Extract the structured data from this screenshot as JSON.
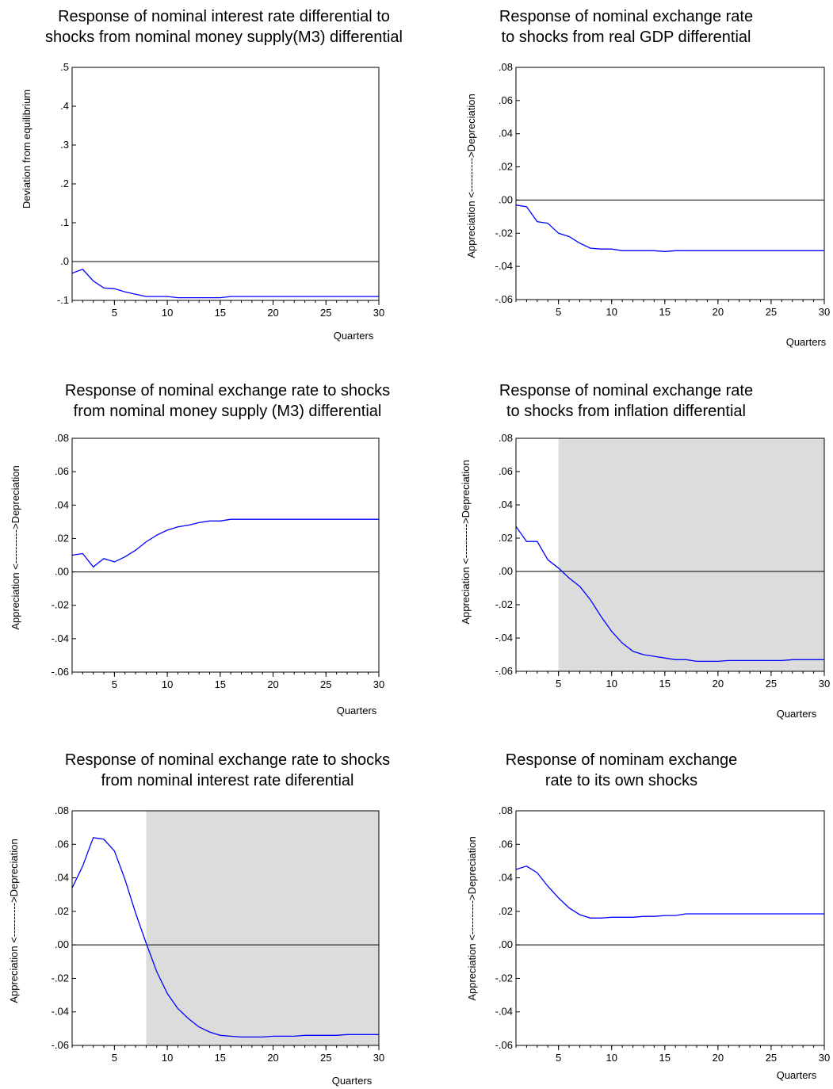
{
  "chart_data": [
    {
      "type": "line",
      "title_lines": [
        "Response of nominal interest rate differential to",
        "shocks from nominal money supply(M3) differential"
      ],
      "xlabel": "Quarters",
      "ylabel": "Deviation from equilibrium",
      "xlim": [
        1,
        30
      ],
      "x_ticks": [
        5,
        10,
        15,
        20,
        25,
        30
      ],
      "x_tick_labels": [
        "5",
        "10",
        "15",
        "20",
        "25",
        "30"
      ],
      "ylim": [
        -0.1,
        0.5
      ],
      "y_ticks": [
        -0.1,
        0.0,
        0.1,
        0.2,
        0.3,
        0.4,
        0.5
      ],
      "y_tick_labels": [
        "-.1",
        ".0",
        ".1",
        ".2",
        ".3",
        ".4",
        ".5"
      ],
      "zero_line": 0,
      "shade_from": null,
      "line_color": "#0000ff",
      "series": [
        {
          "x": [
            1,
            2,
            3,
            4,
            5,
            6,
            7,
            8,
            9,
            10,
            11,
            12,
            13,
            14,
            15,
            16,
            17,
            18,
            19,
            20,
            21,
            22,
            23,
            24,
            25,
            26,
            27,
            28,
            29,
            30
          ],
          "values": [
            -0.03,
            -0.02,
            -0.05,
            -0.068,
            -0.07,
            -0.078,
            -0.084,
            -0.09,
            -0.09,
            -0.09,
            -0.093,
            -0.093,
            -0.093,
            -0.093,
            -0.093,
            -0.09,
            -0.09,
            -0.09,
            -0.09,
            -0.09,
            -0.09,
            -0.09,
            -0.09,
            -0.09,
            -0.09,
            -0.09,
            -0.09,
            -0.09,
            -0.09,
            -0.09
          ]
        }
      ]
    },
    {
      "type": "line",
      "title_lines": [
        "Response of nominal exchange rate",
        "to shocks from real GDP differential"
      ],
      "xlabel": "Quarters",
      "ylabel": "Appreciation <---------->Depreciation",
      "xlim": [
        1,
        30
      ],
      "x_ticks": [
        5,
        10,
        15,
        20,
        25,
        30
      ],
      "x_tick_labels": [
        "5",
        "10",
        "15",
        "20",
        "25",
        "30"
      ],
      "ylim": [
        -0.06,
        0.08
      ],
      "y_ticks": [
        -0.06,
        -0.04,
        -0.02,
        0.0,
        0.02,
        0.04,
        0.06,
        0.08
      ],
      "y_tick_labels": [
        "-.06",
        "-.04",
        "-.02",
        ".00",
        ".02",
        ".04",
        ".06",
        ".08"
      ],
      "zero_line": 0,
      "shade_from": null,
      "line_color": "#0000ff",
      "series": [
        {
          "x": [
            1,
            2,
            3,
            4,
            5,
            6,
            7,
            8,
            9,
            10,
            11,
            12,
            13,
            14,
            15,
            16,
            17,
            18,
            19,
            20,
            21,
            22,
            23,
            24,
            25,
            26,
            27,
            28,
            29,
            30
          ],
          "values": [
            -0.003,
            -0.004,
            -0.013,
            -0.014,
            -0.02,
            -0.022,
            -0.026,
            -0.029,
            -0.0295,
            -0.0295,
            -0.0305,
            -0.0305,
            -0.0305,
            -0.0305,
            -0.031,
            -0.0305,
            -0.0305,
            -0.0305,
            -0.0305,
            -0.0305,
            -0.0305,
            -0.0305,
            -0.0305,
            -0.0305,
            -0.0305,
            -0.0305,
            -0.0305,
            -0.0305,
            -0.0305,
            -0.0305
          ]
        }
      ]
    },
    {
      "type": "line",
      "title_lines": [
        "Response of nominal exchange rate to shocks",
        "from nominal money supply (M3) differential"
      ],
      "xlabel": "Quarters",
      "ylabel": "Appreciation <---------->Depreciation",
      "xlim": [
        1,
        30
      ],
      "x_ticks": [
        5,
        10,
        15,
        20,
        25,
        30
      ],
      "x_tick_labels": [
        "5",
        "10",
        "15",
        "20",
        "25",
        "30"
      ],
      "ylim": [
        -0.06,
        0.08
      ],
      "y_ticks": [
        -0.06,
        -0.04,
        -0.02,
        0.0,
        0.02,
        0.04,
        0.06,
        0.08
      ],
      "y_tick_labels": [
        "-.06",
        "-.04",
        "-.02",
        ".00",
        ".02",
        ".04",
        ".06",
        ".08"
      ],
      "zero_line": 0,
      "shade_from": null,
      "line_color": "#0000ff",
      "series": [
        {
          "x": [
            1,
            2,
            3,
            4,
            5,
            6,
            7,
            8,
            9,
            10,
            11,
            12,
            13,
            14,
            15,
            16,
            17,
            18,
            19,
            20,
            21,
            22,
            23,
            24,
            25,
            26,
            27,
            28,
            29,
            30
          ],
          "values": [
            0.01,
            0.011,
            0.003,
            0.008,
            0.006,
            0.009,
            0.013,
            0.018,
            0.022,
            0.025,
            0.027,
            0.028,
            0.0295,
            0.0305,
            0.0305,
            0.0315,
            0.0315,
            0.0315,
            0.0315,
            0.0315,
            0.0315,
            0.0315,
            0.0315,
            0.0315,
            0.0315,
            0.0315,
            0.0315,
            0.0315,
            0.0315,
            0.0315
          ]
        }
      ]
    },
    {
      "type": "line",
      "title_lines": [
        "Response of nominal exchange rate",
        "to shocks from inflation differential"
      ],
      "xlabel": "Quarters",
      "ylabel": "Appreciation <---------->Depreciation",
      "xlim": [
        1,
        30
      ],
      "x_ticks": [
        5,
        10,
        15,
        20,
        25,
        30
      ],
      "x_tick_labels": [
        "5",
        "10",
        "15",
        "20",
        "25",
        "30"
      ],
      "ylim": [
        -0.06,
        0.08
      ],
      "y_ticks": [
        -0.06,
        -0.04,
        -0.02,
        0.0,
        0.02,
        0.04,
        0.06,
        0.08
      ],
      "y_tick_labels": [
        "-.06",
        "-.04",
        "-.02",
        ".00",
        ".02",
        ".04",
        ".06",
        ".08"
      ],
      "zero_line": 0,
      "shade_from": 5,
      "shade_color": "#dcdcdc",
      "line_color": "#0000ff",
      "series": [
        {
          "x": [
            1,
            2,
            3,
            4,
            5,
            6,
            7,
            8,
            9,
            10,
            11,
            12,
            13,
            14,
            15,
            16,
            17,
            18,
            19,
            20,
            21,
            22,
            23,
            24,
            25,
            26,
            27,
            28,
            29,
            30
          ],
          "values": [
            0.027,
            0.018,
            0.018,
            0.007,
            0.002,
            -0.004,
            -0.009,
            -0.017,
            -0.027,
            -0.036,
            -0.043,
            -0.048,
            -0.05,
            -0.051,
            -0.052,
            -0.053,
            -0.053,
            -0.054,
            -0.054,
            -0.054,
            -0.0535,
            -0.0535,
            -0.0535,
            -0.0535,
            -0.0535,
            -0.0535,
            -0.053,
            -0.053,
            -0.053,
            -0.053
          ]
        }
      ]
    },
    {
      "type": "line",
      "title_lines": [
        "Response of nominal exchange rate to shocks",
        "from nominal interest rate diferential"
      ],
      "xlabel": "Quarters",
      "ylabel": "Appreciation <---------->Depreciation",
      "xlim": [
        1,
        30
      ],
      "x_ticks": [
        5,
        10,
        15,
        20,
        25,
        30
      ],
      "x_tick_labels": [
        "5",
        "10",
        "15",
        "20",
        "25",
        "30"
      ],
      "ylim": [
        -0.06,
        0.08
      ],
      "y_ticks": [
        -0.06,
        -0.04,
        -0.02,
        0.0,
        0.02,
        0.04,
        0.06,
        0.08
      ],
      "y_tick_labels": [
        "-.06",
        "-.04",
        "-.02",
        ".00",
        ".02",
        ".04",
        ".06",
        ".08"
      ],
      "zero_line": 0,
      "shade_from": 8,
      "shade_color": "#dcdcdc",
      "line_color": "#0000ff",
      "series": [
        {
          "x": [
            1,
            2,
            3,
            4,
            5,
            6,
            7,
            8,
            9,
            10,
            11,
            12,
            13,
            14,
            15,
            16,
            17,
            18,
            19,
            20,
            21,
            22,
            23,
            24,
            25,
            26,
            27,
            28,
            29,
            30
          ],
          "values": [
            0.034,
            0.047,
            0.064,
            0.063,
            0.056,
            0.039,
            0.019,
            0.001,
            -0.016,
            -0.029,
            -0.038,
            -0.044,
            -0.049,
            -0.052,
            -0.054,
            -0.0545,
            -0.055,
            -0.055,
            -0.055,
            -0.0545,
            -0.0545,
            -0.0545,
            -0.054,
            -0.054,
            -0.054,
            -0.054,
            -0.0535,
            -0.0535,
            -0.0535,
            -0.0535
          ]
        }
      ]
    },
    {
      "type": "line",
      "title_lines": [
        "Response of nominam exchange",
        "rate to its own shocks"
      ],
      "xlabel": "Quarters",
      "ylabel": "Appreciation <---------->Depreciation",
      "xlim": [
        1,
        30
      ],
      "x_ticks": [
        5,
        10,
        15,
        20,
        25,
        30
      ],
      "x_tick_labels": [
        "5",
        "10",
        "15",
        "20",
        "25",
        "30"
      ],
      "ylim": [
        -0.06,
        0.08
      ],
      "y_ticks": [
        -0.06,
        -0.04,
        -0.02,
        0.0,
        0.02,
        0.04,
        0.06,
        0.08
      ],
      "y_tick_labels": [
        "-.06",
        "-.04",
        "-.02",
        ".00",
        ".02",
        ".04",
        ".06",
        ".08"
      ],
      "zero_line": 0,
      "shade_from": null,
      "line_color": "#0000ff",
      "series": [
        {
          "x": [
            1,
            2,
            3,
            4,
            5,
            6,
            7,
            8,
            9,
            10,
            11,
            12,
            13,
            14,
            15,
            16,
            17,
            18,
            19,
            20,
            21,
            22,
            23,
            24,
            25,
            26,
            27,
            28,
            29,
            30
          ],
          "values": [
            0.045,
            0.047,
            0.043,
            0.035,
            0.028,
            0.022,
            0.018,
            0.016,
            0.016,
            0.0165,
            0.0165,
            0.0165,
            0.017,
            0.017,
            0.0175,
            0.0175,
            0.0185,
            0.0185,
            0.0185,
            0.0185,
            0.0185,
            0.0185,
            0.0185,
            0.0185,
            0.0185,
            0.0185,
            0.0185,
            0.0185,
            0.0185,
            0.0185
          ]
        }
      ]
    }
  ]
}
